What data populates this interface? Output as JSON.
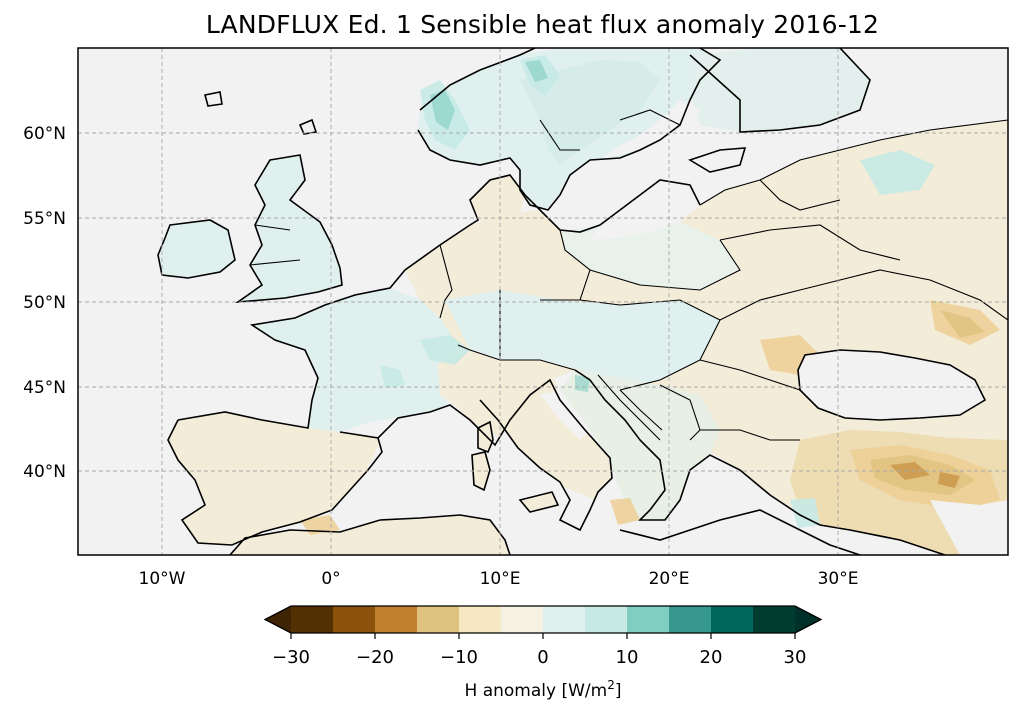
{
  "title": "LANDFLUX Ed. 1 Sensible heat flux anomaly 2016-12",
  "map": {
    "projection": "PlateCarree",
    "lon_range": [
      -15,
      40
    ],
    "lat_range": [
      35,
      65
    ],
    "ocean_color": "#f2f2f2",
    "grid": true,
    "lat_ticks": [
      {
        "value": 40,
        "label": "40°N"
      },
      {
        "value": 45,
        "label": "45°N"
      },
      {
        "value": 50,
        "label": "50°N"
      },
      {
        "value": 55,
        "label": "55°N"
      },
      {
        "value": 60,
        "label": "60°N"
      }
    ],
    "lon_ticks": [
      {
        "value": -10,
        "label": "10°W"
      },
      {
        "value": 0,
        "label": "0°"
      },
      {
        "value": 10,
        "label": "10°E"
      },
      {
        "value": 20,
        "label": "20°E"
      },
      {
        "value": 30,
        "label": "30°E"
      }
    ]
  },
  "colorbar": {
    "label_prefix": "H anomaly [W/m",
    "label_sup": "2",
    "label_suffix": "]",
    "range": [
      -30,
      30
    ],
    "bounds": [
      -30,
      -25,
      -20,
      -15,
      -10,
      -5,
      0,
      5,
      10,
      15,
      20,
      25,
      30
    ],
    "colors": [
      "#543005",
      "#8c510a",
      "#bf812d",
      "#dfc27d",
      "#f6e8c3",
      "#f5f2e4",
      "#e0f0ee",
      "#c7eae5",
      "#80cdc1",
      "#35978f",
      "#01665e",
      "#003c30"
    ],
    "under_color": "#3f2404",
    "over_color": "#00302a",
    "ticks": [
      {
        "value": -30,
        "label": "−30"
      },
      {
        "value": -20,
        "label": "−20"
      },
      {
        "value": -10,
        "label": "−10"
      },
      {
        "value": 0,
        "label": "0"
      },
      {
        "value": 10,
        "label": "10"
      },
      {
        "value": 20,
        "label": "20"
      },
      {
        "value": 30,
        "label": "30"
      }
    ]
  }
}
